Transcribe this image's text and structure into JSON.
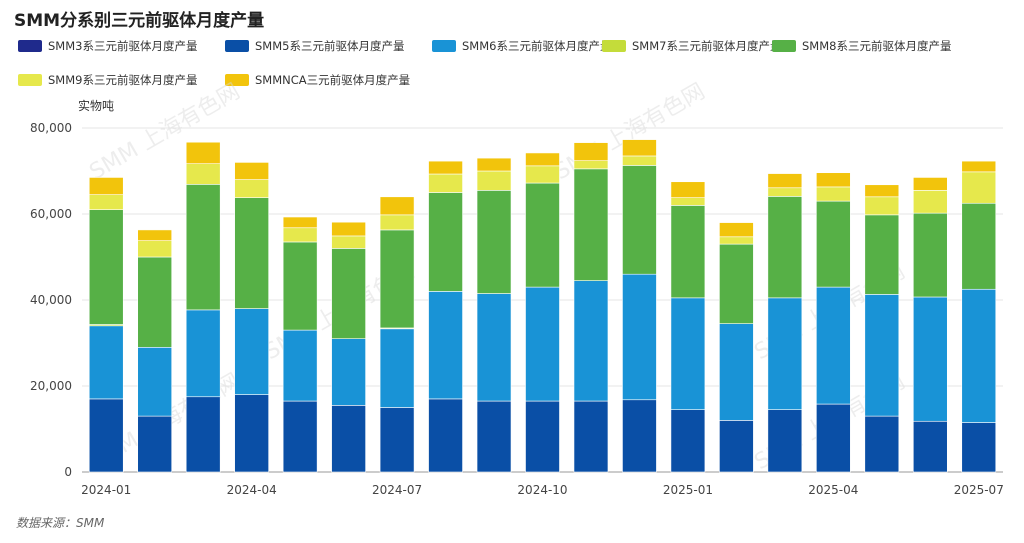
{
  "title": "SMM分系别三元前驱体月度产量",
  "unit_label": "实物吨",
  "source": "数据来源：SMM",
  "watermark": "SMM 上海有色网",
  "chart_data": {
    "type": "bar",
    "stacked": true,
    "categories": [
      "2024-01",
      "2024-02",
      "2024-03",
      "2024-04",
      "2024-05",
      "2024-06",
      "2024-07",
      "2024-08",
      "2024-09",
      "2024-10",
      "2024-11",
      "2024-12",
      "2025-01",
      "2025-02",
      "2025-03",
      "2025-04",
      "2025-05",
      "2025-06",
      "2025-07"
    ],
    "x_tick_labels": [
      "2024-01",
      "",
      "",
      "2024-04",
      "",
      "",
      "2024-07",
      "",
      "",
      "2024-10",
      "",
      "",
      "2025-01",
      "",
      "",
      "2025-04",
      "",
      "",
      "2025-07"
    ],
    "ylim": [
      0,
      80000
    ],
    "y_ticks": [
      0,
      20000,
      40000,
      60000,
      80000
    ],
    "y_tick_labels": [
      "0",
      "20,000",
      "40,000",
      "60,000",
      "80,000"
    ],
    "grid": true,
    "legend_position": "top",
    "series": [
      {
        "name": "SMM3系三元前驱体月度产量",
        "color": "#1f2a8c",
        "values": [
          0,
          0,
          0,
          0,
          0,
          0,
          0,
          0,
          0,
          0,
          0,
          0,
          0,
          0,
          0,
          0,
          0,
          0,
          0
        ]
      },
      {
        "name": "SMM5系三元前驱体月度产量",
        "color": "#0a4fa6",
        "values": [
          17000,
          13000,
          17500,
          18000,
          16500,
          15500,
          15000,
          17000,
          16500,
          16500,
          16500,
          16800,
          14500,
          12000,
          14500,
          15800,
          13000,
          11800,
          11500
        ]
      },
      {
        "name": "SMM6系三元前驱体月度产量",
        "color": "#1993d6",
        "values": [
          17000,
          16000,
          20200,
          20000,
          16500,
          15500,
          18300,
          25000,
          25000,
          26500,
          28000,
          29200,
          26000,
          22500,
          26000,
          27200,
          28300,
          28900,
          31000
        ]
      },
      {
        "name": "SMM7系三元前驱体月度产量",
        "color": "#c4dc3a",
        "values": [
          300,
          0,
          0,
          0,
          0,
          0,
          200,
          0,
          0,
          0,
          0,
          0,
          0,
          0,
          0,
          0,
          0,
          0,
          0
        ]
      },
      {
        "name": "SMM8系三元前驱体月度产量",
        "color": "#56b046",
        "values": [
          26700,
          21000,
          29200,
          25800,
          20500,
          21000,
          22800,
          23000,
          24000,
          24200,
          26000,
          25300,
          21500,
          18500,
          23600,
          20000,
          18500,
          19500,
          20000
        ]
      },
      {
        "name": "SMM9系三元前驱体月度产量",
        "color": "#e6e84c",
        "values": [
          3500,
          3800,
          4800,
          4200,
          3300,
          2900,
          3500,
          4300,
          4500,
          4000,
          1900,
          2200,
          1800,
          1700,
          2000,
          3300,
          4200,
          5300,
          7300
        ]
      },
      {
        "name": "SMMNCA三元前驱体月度产量",
        "color": "#f2c40c",
        "values": [
          4000,
          2500,
          5000,
          4000,
          2500,
          3200,
          4200,
          3000,
          3000,
          3000,
          4200,
          3800,
          3700,
          3300,
          3300,
          3300,
          2800,
          3000,
          2500
        ]
      }
    ]
  }
}
